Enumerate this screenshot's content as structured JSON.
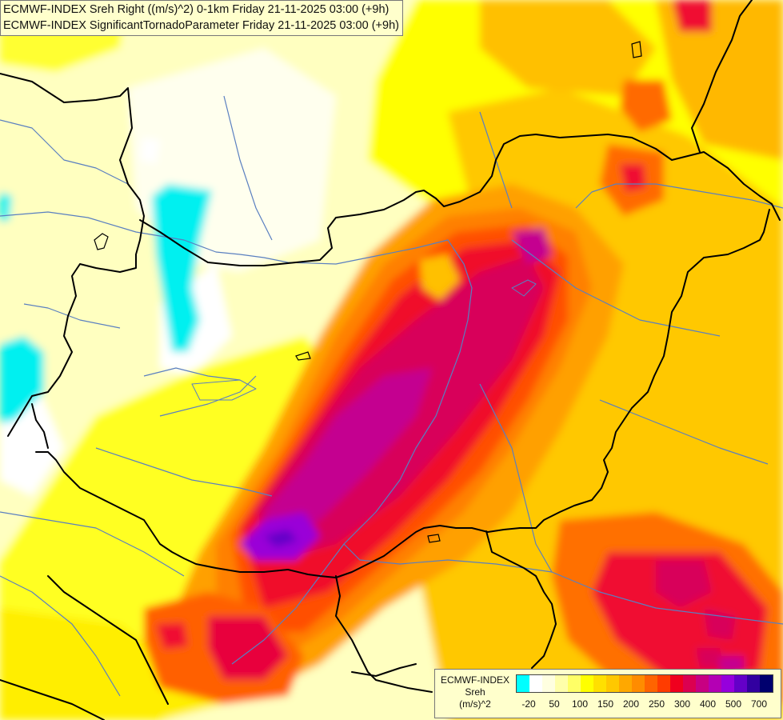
{
  "title": {
    "line1": "ECMWF-INDEX Sreh Right ((m/s)^2) 0-1km Friday 21-11-2025 03:00 (+9h)",
    "line2": "ECMWF-INDEX SignificantTornadoParameter Friday 21-11-2025 03:00 (+9h)"
  },
  "legend": {
    "line1": "ECMWF-INDEX",
    "line2": "Sreh",
    "line3": "(m/s)^2",
    "colors": [
      "#00ffff",
      "#ffffff",
      "#ffffe0",
      "#ffffaa",
      "#ffff66",
      "#ffff00",
      "#ffe000",
      "#ffc800",
      "#ffa800",
      "#ff8c00",
      "#ff6400",
      "#ff3c00",
      "#f0001e",
      "#dc0050",
      "#c80082",
      "#b400b4",
      "#9600dc",
      "#6400c8",
      "#3200a0",
      "#00006e"
    ],
    "ticks": [
      "-20",
      "50",
      "100",
      "150",
      "200",
      "250",
      "300",
      "400",
      "500",
      "700"
    ]
  }
}
